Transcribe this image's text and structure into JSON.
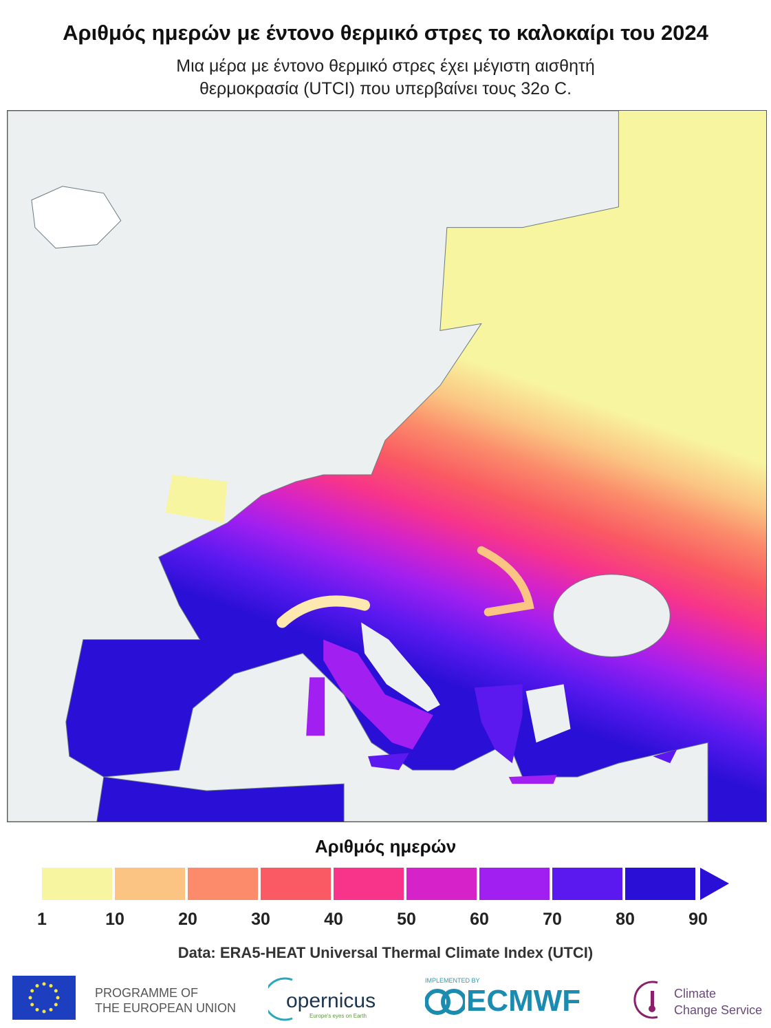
{
  "header": {
    "title": "Αριθμός ημερών με έντονο θερμικό στρες το καλοκαίρι του 2024",
    "subtitle_line1": "Μια μέρα με έντονο θερμικό στρες έχει μέγιστη αισθητή",
    "subtitle_line2": "θερμοκρασία (UTCI) που υπερβαίνει τους 32ο C."
  },
  "map": {
    "region": "Europe",
    "sea_color": "#edf0f1",
    "no_data_color": "#edf0f1"
  },
  "legend": {
    "title": "Αριθμός ημερών",
    "bins": [
      {
        "from": 1,
        "to": 10,
        "color": "#f8f5a0"
      },
      {
        "from": 10,
        "to": 20,
        "color": "#fbc482"
      },
      {
        "from": 20,
        "to": 30,
        "color": "#fb8b6a"
      },
      {
        "from": 30,
        "to": 40,
        "color": "#fa5a63"
      },
      {
        "from": 40,
        "to": 50,
        "color": "#f7348a"
      },
      {
        "from": 50,
        "to": 60,
        "color": "#d523c9"
      },
      {
        "from": 60,
        "to": 70,
        "color": "#a11ff0"
      },
      {
        "from": 70,
        "to": 80,
        "color": "#5b19f0"
      },
      {
        "from": 80,
        "to": 90,
        "color": "#2a0fd6"
      }
    ],
    "overflow_color": "#2a0fd6",
    "ticks": [
      "1",
      "10",
      "20",
      "30",
      "40",
      "50",
      "60",
      "70",
      "80",
      "90"
    ]
  },
  "source": "Data: ERA5-HEAT Universal Thermal Climate Index (UTCI)",
  "logos": {
    "eu_line1": "PROGRAMME OF",
    "eu_line2": "THE EUROPEAN UNION",
    "copernicus": "opernicus",
    "copernicus_tag": "Europe's eyes on Earth",
    "ecmwf_small": "IMPLEMENTED BY",
    "ecmwf": "ECMWF",
    "c3s_line1": "Climate",
    "c3s_line2": "Change Service"
  }
}
